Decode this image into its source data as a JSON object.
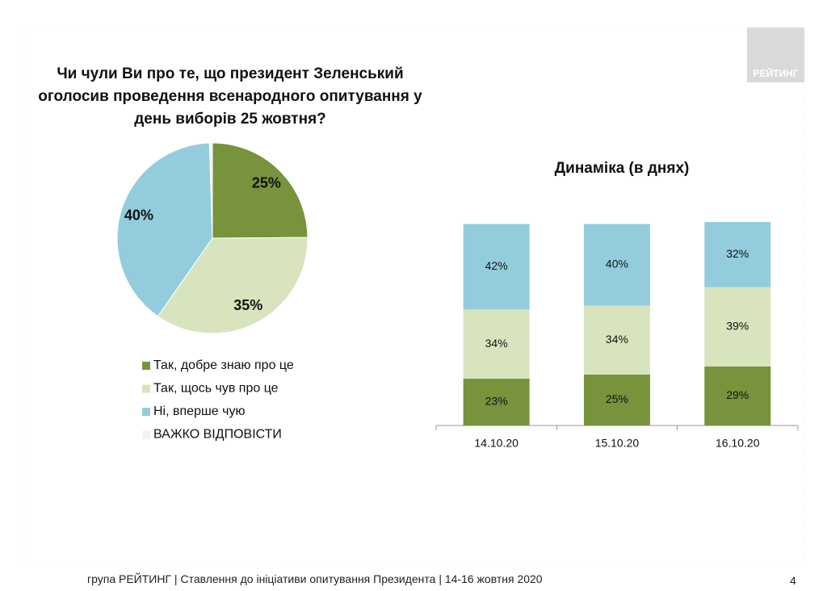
{
  "logo": "РЕЙТИНГ",
  "footer": "група РЕЙТИНГ | Ставлення до ініціативи опитування Президента | 14-16 жовтня 2020",
  "page_number": "4",
  "chart_data": [
    {
      "type": "pie",
      "title": "Чи чули Ви про те, що президент Зеленський оголосив проведення  всенародного опитування у день виборів 25 жовтня?",
      "categories": [
        "Так, добре знаю про це",
        "Так, щось чув про це",
        "Ні, вперше чую",
        "ВАЖКО ВІДПОВІСТИ"
      ],
      "values": [
        25,
        35,
        40,
        0.5
      ],
      "value_labels": [
        "25%",
        "35%",
        "40%",
        null
      ],
      "colors": [
        "#77933c",
        "#d7e4bd",
        "#93cddd",
        "#f2f2f2"
      ],
      "legend": "bottom"
    },
    {
      "type": "stacked-bar",
      "title": "Динаміка (в днях)",
      "categories": [
        "14.10.20",
        "15.10.20",
        "16.10.20"
      ],
      "series": [
        {
          "color": "#77933c",
          "values": [
            23,
            25,
            29
          ],
          "value_labels": [
            "23%",
            "25%",
            "29%"
          ]
        },
        {
          "color": "#d7e4bd",
          "values": [
            34,
            34,
            39
          ],
          "value_labels": [
            "34%",
            "34%",
            "39%"
          ]
        },
        {
          "color": "#93cddd",
          "values": [
            42,
            40,
            32
          ],
          "value_labels": [
            "42%",
            "40%",
            "32%"
          ]
        }
      ]
    }
  ]
}
